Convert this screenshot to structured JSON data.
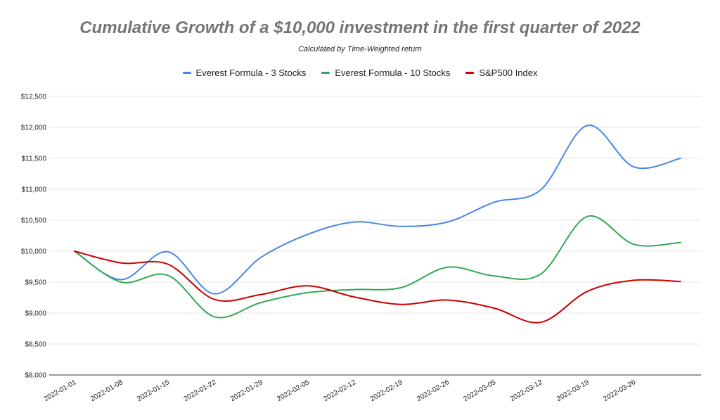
{
  "chart_data": {
    "type": "line",
    "title": "Cumulative Growth of a $10,000 investment in the first quarter of 2022",
    "subtitle": "Calculated by Time-Weighted return",
    "xlabel": "",
    "ylabel": "",
    "legend_position": "top",
    "grid": true,
    "ylim": [
      8000,
      12500
    ],
    "y_ticks": [
      8000,
      8500,
      9000,
      9500,
      10000,
      10500,
      11000,
      11500,
      12000,
      12500
    ],
    "y_tick_labels": [
      "$8,000",
      "$8,500",
      "$9,000",
      "$9,500",
      "$10,000",
      "$10,500",
      "$11,000",
      "$11,500",
      "$12,000",
      "$12,500"
    ],
    "x_tick_labels": [
      "2022-01-01",
      "2022-01-08",
      "2022-01-15",
      "2022-01-22",
      "2022-01-29",
      "2022-02-05",
      "2022-02-12",
      "2022-02-19",
      "2022-02-26",
      "2022-03-05",
      "2022-03-12",
      "2022-03-19",
      "2022-03-26"
    ],
    "x": [
      "2022-01-01",
      "2022-01-08",
      "2022-01-15",
      "2022-01-22",
      "2022-01-29",
      "2022-02-05",
      "2022-02-12",
      "2022-02-19",
      "2022-02-26",
      "2022-03-05",
      "2022-03-12",
      "2022-03-19",
      "2022-03-26",
      "2022-04-02"
    ],
    "series": [
      {
        "name": "Everest Formula - 3 Stocks",
        "color": "#4a86e8",
        "values": [
          10000,
          9540,
          9990,
          9310,
          9900,
          10270,
          10470,
          10400,
          10470,
          10790,
          10990,
          12030,
          11360,
          11500
        ]
      },
      {
        "name": "Everest Formula - 10 Stocks",
        "color": "#34a853",
        "values": [
          10000,
          9500,
          9610,
          8940,
          9170,
          9330,
          9380,
          9410,
          9740,
          9600,
          9630,
          10560,
          10110,
          10140
        ]
      },
      {
        "name": "S&P500 Index",
        "color": "#cc0000",
        "values": [
          10000,
          9810,
          9790,
          9220,
          9300,
          9440,
          9260,
          9140,
          9210,
          9080,
          8850,
          9350,
          9530,
          9510
        ]
      }
    ]
  }
}
